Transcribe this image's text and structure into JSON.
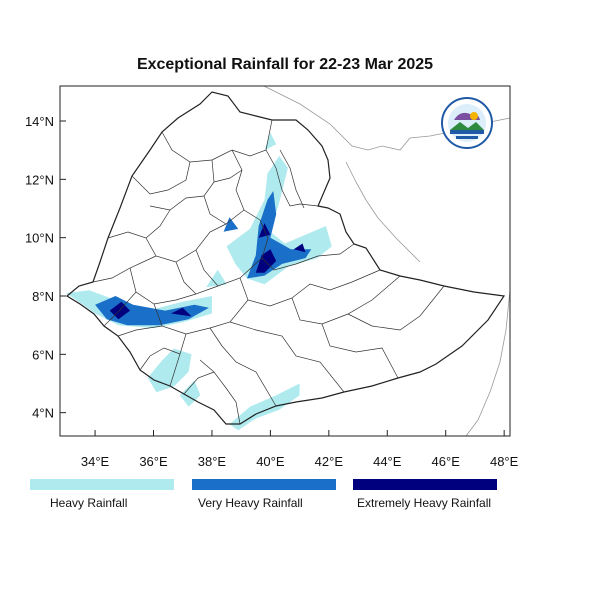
{
  "title": "Exceptional Rainfall for 22-23 Mar 2025",
  "map": {
    "lon_range": [
      32.8,
      48.2
    ],
    "lat_range": [
      3.2,
      15.2
    ],
    "x_ticks": [
      {
        "lon": 34,
        "label": "34°E"
      },
      {
        "lon": 36,
        "label": "36°E"
      },
      {
        "lon": 38,
        "label": "38°E"
      },
      {
        "lon": 40,
        "label": "40°E"
      },
      {
        "lon": 42,
        "label": "42°E"
      },
      {
        "lon": 44,
        "label": "44°E"
      },
      {
        "lon": 46,
        "label": "46°E"
      },
      {
        "lon": 48,
        "label": "48°E"
      }
    ],
    "y_ticks": [
      {
        "lat": 4,
        "label": "4°N"
      },
      {
        "lat": 6,
        "label": "6°N"
      },
      {
        "lat": 8,
        "label": "8°N"
      },
      {
        "lat": 10,
        "label": "10°N"
      },
      {
        "lat": 12,
        "label": "12°N"
      },
      {
        "lat": 14,
        "label": "14°N"
      }
    ],
    "border_color": "#222222",
    "neighbor_color": "#999999"
  },
  "rainfall": {
    "colors": {
      "heavy": "#aeeaee",
      "very_heavy": "#1a6fc9",
      "extreme": "#00007f"
    },
    "heavy_regions": [
      [
        [
          33.0,
          8.1
        ],
        [
          33.8,
          8.2
        ],
        [
          34.6,
          7.9
        ],
        [
          35.8,
          7.5
        ],
        [
          37.0,
          7.8
        ],
        [
          38.0,
          8.0
        ],
        [
          38.0,
          7.4
        ],
        [
          37.0,
          7.1
        ],
        [
          36.0,
          6.9
        ],
        [
          34.8,
          7.0
        ],
        [
          34.0,
          7.4
        ],
        [
          33.3,
          7.9
        ]
      ],
      [
        [
          38.5,
          9.7
        ],
        [
          39.3,
          10.3
        ],
        [
          39.8,
          11.3
        ],
        [
          39.9,
          12.2
        ],
        [
          40.3,
          12.8
        ],
        [
          40.6,
          12.4
        ],
        [
          40.3,
          11.2
        ],
        [
          40.0,
          10.2
        ],
        [
          40.5,
          9.8
        ],
        [
          41.2,
          10.1
        ],
        [
          41.9,
          10.4
        ],
        [
          42.1,
          9.7
        ],
        [
          41.6,
          9.3
        ],
        [
          40.6,
          9.0
        ],
        [
          39.8,
          8.4
        ],
        [
          39.2,
          8.6
        ],
        [
          38.8,
          9.1
        ]
      ],
      [
        [
          38.6,
          3.6
        ],
        [
          39.3,
          4.2
        ],
        [
          40.2,
          4.6
        ],
        [
          41.0,
          5.0
        ],
        [
          41.0,
          4.6
        ],
        [
          40.3,
          4.1
        ],
        [
          39.5,
          3.8
        ],
        [
          38.9,
          3.4
        ]
      ],
      [
        [
          35.8,
          5.2
        ],
        [
          36.3,
          5.8
        ],
        [
          36.7,
          6.2
        ],
        [
          37.3,
          6.0
        ],
        [
          37.2,
          5.4
        ],
        [
          36.7,
          4.9
        ],
        [
          36.1,
          4.7
        ]
      ],
      [
        [
          36.9,
          4.6
        ],
        [
          37.4,
          5.1
        ],
        [
          37.6,
          4.6
        ],
        [
          37.2,
          4.2
        ]
      ],
      [
        [
          39.8,
          13.0
        ],
        [
          40.0,
          13.6
        ],
        [
          40.2,
          13.2
        ]
      ],
      [
        [
          37.8,
          8.3
        ],
        [
          38.2,
          8.9
        ],
        [
          38.5,
          8.4
        ]
      ]
    ],
    "very_heavy_regions": [
      [
        [
          34.0,
          7.7
        ],
        [
          34.7,
          8.0
        ],
        [
          35.3,
          7.7
        ],
        [
          36.4,
          7.5
        ],
        [
          37.4,
          7.7
        ],
        [
          37.9,
          7.6
        ],
        [
          37.2,
          7.2
        ],
        [
          36.2,
          7.0
        ],
        [
          35.1,
          7.0
        ],
        [
          34.4,
          7.2
        ]
      ],
      [
        [
          39.2,
          8.6
        ],
        [
          39.5,
          9.4
        ],
        [
          39.6,
          10.4
        ],
        [
          39.9,
          11.3
        ],
        [
          40.1,
          11.6
        ],
        [
          40.2,
          10.8
        ],
        [
          40.0,
          10.0
        ],
        [
          40.7,
          9.6
        ],
        [
          41.4,
          9.6
        ],
        [
          41.2,
          9.3
        ],
        [
          40.4,
          9.1
        ],
        [
          39.8,
          8.7
        ]
      ],
      [
        [
          38.4,
          10.2
        ],
        [
          38.6,
          10.7
        ],
        [
          38.9,
          10.3
        ]
      ]
    ],
    "extreme_regions": [
      [
        [
          34.5,
          7.5
        ],
        [
          34.9,
          7.8
        ],
        [
          35.2,
          7.5
        ],
        [
          34.8,
          7.2
        ]
      ],
      [
        [
          36.6,
          7.4
        ],
        [
          37.0,
          7.6
        ],
        [
          37.3,
          7.3
        ]
      ],
      [
        [
          39.5,
          8.8
        ],
        [
          39.7,
          9.4
        ],
        [
          40.0,
          9.6
        ],
        [
          40.2,
          9.2
        ],
        [
          39.8,
          8.8
        ]
      ],
      [
        [
          39.6,
          10.0
        ],
        [
          39.8,
          10.5
        ],
        [
          40.0,
          10.1
        ]
      ],
      [
        [
          40.8,
          9.6
        ],
        [
          41.1,
          9.8
        ],
        [
          41.2,
          9.5
        ]
      ]
    ]
  },
  "legend": {
    "heavy": "Heavy Rainfall",
    "very_heavy": "Very Heavy Rainfall",
    "extreme": "Extremely Heavy Rainfall"
  }
}
